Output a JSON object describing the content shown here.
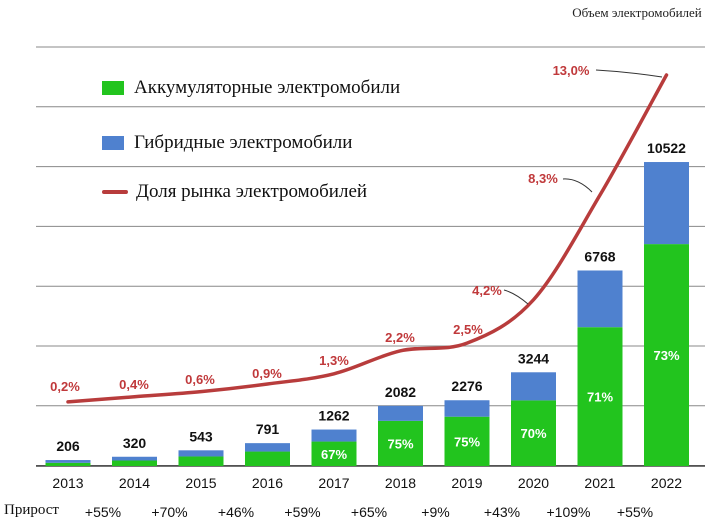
{
  "chart_data": {
    "type": "bar",
    "stacked": true,
    "categories": [
      "2013",
      "2014",
      "2015",
      "2016",
      "2017",
      "2018",
      "2019",
      "2020",
      "2021",
      "2022"
    ],
    "series": [
      {
        "name": "Аккумуляторные электромобили",
        "color": "#22c41e",
        "values": [
          110,
          190,
          330,
          500,
          846,
          1562,
          1707,
          2271,
          4805,
          7681
        ]
      },
      {
        "name": "Гибридные электромобили",
        "color": "#4f81cf",
        "values": [
          96,
          130,
          213,
          291,
          416,
          520,
          569,
          973,
          1963,
          2841
        ]
      }
    ],
    "totals": [
      "206",
      "320",
      "543",
      "791",
      "1262",
      "2082",
      "2276",
      "3244",
      "6768",
      "10522"
    ],
    "bar_percent_labels": [
      "",
      "",
      "",
      "",
      "67%",
      "75%",
      "75%",
      "70%",
      "71%",
      "73%"
    ],
    "line": {
      "name": "Доля рынка электромобилей",
      "color": "#b83c3c",
      "values": [
        0.2,
        0.4,
        0.6,
        0.9,
        1.3,
        2.2,
        2.5,
        4.2,
        8.3,
        13.0
      ],
      "labels": [
        "0,2%",
        "0,4%",
        "0,6%",
        "0,9%",
        "1,3%",
        "2,2%",
        "2,5%",
        "4,2%",
        "8,3%",
        "13,0%"
      ]
    },
    "growth_title": "Прирост",
    "growth": [
      "+55%",
      "+70%",
      "+46%",
      "+59%",
      "+65%",
      "+9%",
      "+43%",
      "+109%",
      "+55%"
    ],
    "corner_label": "Объем электромобилей",
    "ylim": [
      0,
      10800
    ]
  },
  "colors": {
    "label": "#c0393b",
    "grid": "#888888",
    "axis": "#222222",
    "text": "#111111"
  }
}
